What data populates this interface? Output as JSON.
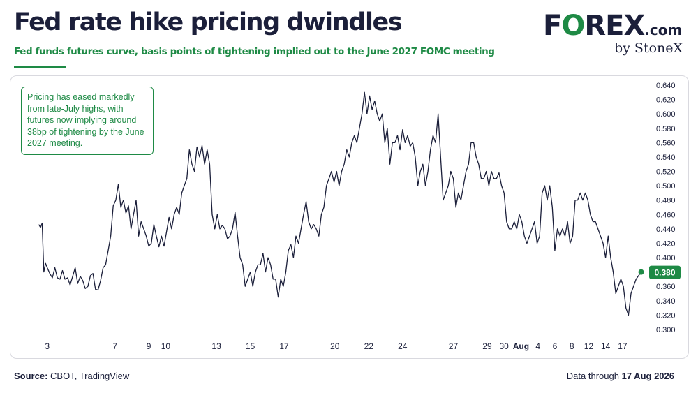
{
  "header": {
    "title": "Fed rate hike pricing dwindles",
    "subtitle": "Fed funds futures curve, basis points of tightening implied out to the June 2027 FOMC meeting"
  },
  "logo": {
    "f": "F",
    "o": "O",
    "rex": "REX",
    "dotcom": ".com",
    "byline": "by StoneX"
  },
  "annotation": {
    "text": "Pricing has eased markedly from late-July highs, with futures now implying around 38bp of tightening by the June 2027 meeting."
  },
  "footer": {
    "source_label": "Source:",
    "source_text": "CBOT, TradingView",
    "data_label": "Data through",
    "data_date": "17 Aug 2026"
  },
  "colors": {
    "line": "#1b1f3a",
    "accent": "#1e8a45",
    "title": "#1b1f3a"
  },
  "chart_data": {
    "type": "line",
    "title": "Fed rate hike pricing dwindles",
    "xlabel": "",
    "ylabel": "",
    "ylim": [
      0.29,
      0.645
    ],
    "y_ticks": [
      "0.640",
      "0.620",
      "0.600",
      "0.580",
      "0.560",
      "0.540",
      "0.520",
      "0.500",
      "0.480",
      "0.460",
      "0.440",
      "0.420",
      "0.400",
      "0.380",
      "0.360",
      "0.340",
      "0.320",
      "0.300"
    ],
    "x_ticks": [
      {
        "label": "3",
        "day": 3
      },
      {
        "label": "7",
        "day": 7
      },
      {
        "label": "9",
        "day": 9
      },
      {
        "label": "10",
        "day": 10
      },
      {
        "label": "13",
        "day": 13
      },
      {
        "label": "15",
        "day": 15
      },
      {
        "label": "17",
        "day": 17
      },
      {
        "label": "20",
        "day": 20
      },
      {
        "label": "22",
        "day": 22
      },
      {
        "label": "24",
        "day": 24
      },
      {
        "label": "27",
        "day": 27
      },
      {
        "label": "29",
        "day": 29
      },
      {
        "label": "30",
        "day": 30
      },
      {
        "label": "Aug",
        "day": 31
      },
      {
        "label": "4",
        "day": 32
      },
      {
        "label": "6",
        "day": 33
      },
      {
        "label": "8",
        "day": 34
      },
      {
        "label": "12",
        "day": 35
      },
      {
        "label": "14",
        "day": 36
      },
      {
        "label": "17",
        "day": 37
      }
    ],
    "x_range": [
      2.6,
      37.5
    ],
    "grid": false,
    "last_value_label": "0.380",
    "last_value": 0.38,
    "series": [
      {
        "name": "",
        "points": [
          [
            2.5,
            0.446
          ],
          [
            2.6,
            0.442
          ],
          [
            2.7,
            0.448
          ],
          [
            2.8,
            0.38
          ],
          [
            2.9,
            0.392
          ],
          [
            3.0,
            0.386
          ],
          [
            3.15,
            0.378
          ],
          [
            3.3,
            0.372
          ],
          [
            3.45,
            0.386
          ],
          [
            3.6,
            0.372
          ],
          [
            3.75,
            0.37
          ],
          [
            3.9,
            0.382
          ],
          [
            4.05,
            0.37
          ],
          [
            4.2,
            0.372
          ],
          [
            4.35,
            0.362
          ],
          [
            4.5,
            0.374
          ],
          [
            4.65,
            0.386
          ],
          [
            4.8,
            0.364
          ],
          [
            4.95,
            0.374
          ],
          [
            5.1,
            0.368
          ],
          [
            5.25,
            0.357
          ],
          [
            5.4,
            0.36
          ],
          [
            5.55,
            0.375
          ],
          [
            5.7,
            0.378
          ],
          [
            5.85,
            0.356
          ],
          [
            6.0,
            0.355
          ],
          [
            6.15,
            0.368
          ],
          [
            6.3,
            0.386
          ],
          [
            6.45,
            0.39
          ],
          [
            6.6,
            0.41
          ],
          [
            6.75,
            0.43
          ],
          [
            6.9,
            0.472
          ],
          [
            7.05,
            0.48
          ],
          [
            7.2,
            0.502
          ],
          [
            7.35,
            0.47
          ],
          [
            7.5,
            0.48
          ],
          [
            7.65,
            0.462
          ],
          [
            7.8,
            0.472
          ],
          [
            7.95,
            0.44
          ],
          [
            8.1,
            0.46
          ],
          [
            8.25,
            0.48
          ],
          [
            8.4,
            0.43
          ],
          [
            8.55,
            0.45
          ],
          [
            8.7,
            0.44
          ],
          [
            8.85,
            0.43
          ],
          [
            9.0,
            0.416
          ],
          [
            9.15,
            0.42
          ],
          [
            9.3,
            0.446
          ],
          [
            9.45,
            0.43
          ],
          [
            9.6,
            0.415
          ],
          [
            9.75,
            0.43
          ],
          [
            9.9,
            0.416
          ],
          [
            10.05,
            0.436
          ],
          [
            10.2,
            0.456
          ],
          [
            10.35,
            0.44
          ],
          [
            10.5,
            0.46
          ],
          [
            10.65,
            0.47
          ],
          [
            10.8,
            0.46
          ],
          [
            10.95,
            0.49
          ],
          [
            11.1,
            0.5
          ],
          [
            11.25,
            0.51
          ],
          [
            11.4,
            0.55
          ],
          [
            11.55,
            0.53
          ],
          [
            11.7,
            0.52
          ],
          [
            11.85,
            0.554
          ],
          [
            12.0,
            0.54
          ],
          [
            12.15,
            0.556
          ],
          [
            12.3,
            0.53
          ],
          [
            12.45,
            0.55
          ],
          [
            12.6,
            0.53
          ],
          [
            12.75,
            0.46
          ],
          [
            12.9,
            0.44
          ],
          [
            13.05,
            0.46
          ],
          [
            13.2,
            0.44
          ],
          [
            13.35,
            0.445
          ],
          [
            13.5,
            0.44
          ],
          [
            13.65,
            0.426
          ],
          [
            13.8,
            0.43
          ],
          [
            13.95,
            0.44
          ],
          [
            14.1,
            0.463
          ],
          [
            14.25,
            0.43
          ],
          [
            14.4,
            0.4
          ],
          [
            14.55,
            0.39
          ],
          [
            14.7,
            0.36
          ],
          [
            14.85,
            0.37
          ],
          [
            15.0,
            0.38
          ],
          [
            15.15,
            0.36
          ],
          [
            15.3,
            0.38
          ],
          [
            15.45,
            0.39
          ],
          [
            15.6,
            0.39
          ],
          [
            15.75,
            0.406
          ],
          [
            15.9,
            0.38
          ],
          [
            16.05,
            0.4
          ],
          [
            16.2,
            0.39
          ],
          [
            16.35,
            0.37
          ],
          [
            16.5,
            0.37
          ],
          [
            16.65,
            0.345
          ],
          [
            16.8,
            0.37
          ],
          [
            16.95,
            0.36
          ],
          [
            17.1,
            0.38
          ],
          [
            17.25,
            0.41
          ],
          [
            17.4,
            0.418
          ],
          [
            17.55,
            0.4
          ],
          [
            17.7,
            0.43
          ],
          [
            17.85,
            0.42
          ],
          [
            18.0,
            0.44
          ],
          [
            18.15,
            0.46
          ],
          [
            18.3,
            0.478
          ],
          [
            18.45,
            0.45
          ],
          [
            18.6,
            0.44
          ],
          [
            18.75,
            0.446
          ],
          [
            18.9,
            0.44
          ],
          [
            19.05,
            0.43
          ],
          [
            19.2,
            0.46
          ],
          [
            19.35,
            0.47
          ],
          [
            19.5,
            0.5
          ],
          [
            19.65,
            0.51
          ],
          [
            19.8,
            0.52
          ],
          [
            19.95,
            0.505
          ],
          [
            20.1,
            0.52
          ],
          [
            20.25,
            0.5
          ],
          [
            20.4,
            0.52
          ],
          [
            20.55,
            0.53
          ],
          [
            20.7,
            0.55
          ],
          [
            20.85,
            0.54
          ],
          [
            21.0,
            0.56
          ],
          [
            21.15,
            0.57
          ],
          [
            21.3,
            0.56
          ],
          [
            21.45,
            0.58
          ],
          [
            21.6,
            0.6
          ],
          [
            21.75,
            0.63
          ],
          [
            21.9,
            0.6
          ],
          [
            22.05,
            0.625
          ],
          [
            22.2,
            0.606
          ],
          [
            22.35,
            0.618
          ],
          [
            22.5,
            0.6
          ],
          [
            22.65,
            0.59
          ],
          [
            22.8,
            0.6
          ],
          [
            22.95,
            0.56
          ],
          [
            23.1,
            0.58
          ],
          [
            23.25,
            0.53
          ],
          [
            23.4,
            0.56
          ],
          [
            23.55,
            0.56
          ],
          [
            23.7,
            0.57
          ],
          [
            23.85,
            0.55
          ],
          [
            24.0,
            0.578
          ],
          [
            24.15,
            0.56
          ],
          [
            24.3,
            0.57
          ],
          [
            24.45,
            0.555
          ],
          [
            24.6,
            0.56
          ],
          [
            24.75,
            0.54
          ],
          [
            24.9,
            0.5
          ],
          [
            25.05,
            0.52
          ],
          [
            25.2,
            0.53
          ],
          [
            25.35,
            0.5
          ],
          [
            25.5,
            0.52
          ],
          [
            25.65,
            0.55
          ],
          [
            25.8,
            0.57
          ],
          [
            25.95,
            0.56
          ],
          [
            26.1,
            0.6
          ],
          [
            26.25,
            0.54
          ],
          [
            26.4,
            0.48
          ],
          [
            26.55,
            0.49
          ],
          [
            26.7,
            0.5
          ],
          [
            26.85,
            0.52
          ],
          [
            27.0,
            0.51
          ],
          [
            27.15,
            0.47
          ],
          [
            27.3,
            0.49
          ],
          [
            27.45,
            0.48
          ],
          [
            27.6,
            0.5
          ],
          [
            27.75,
            0.52
          ],
          [
            27.9,
            0.53
          ],
          [
            28.05,
            0.56
          ],
          [
            28.2,
            0.56
          ],
          [
            28.35,
            0.54
          ],
          [
            28.5,
            0.53
          ],
          [
            28.65,
            0.51
          ],
          [
            28.8,
            0.51
          ],
          [
            28.95,
            0.52
          ],
          [
            29.1,
            0.5
          ],
          [
            29.25,
            0.52
          ],
          [
            29.4,
            0.51
          ],
          [
            29.55,
            0.51
          ],
          [
            29.7,
            0.518
          ],
          [
            29.85,
            0.5
          ],
          [
            30.0,
            0.49
          ],
          [
            30.15,
            0.45
          ],
          [
            30.3,
            0.44
          ],
          [
            30.45,
            0.44
          ],
          [
            30.6,
            0.45
          ],
          [
            30.75,
            0.44
          ],
          [
            30.9,
            0.46
          ],
          [
            31.05,
            0.45
          ],
          [
            31.2,
            0.43
          ],
          [
            31.35,
            0.42
          ],
          [
            31.5,
            0.43
          ],
          [
            31.65,
            0.44
          ],
          [
            31.8,
            0.45
          ],
          [
            31.95,
            0.42
          ],
          [
            32.1,
            0.43
          ],
          [
            32.25,
            0.49
          ],
          [
            32.4,
            0.5
          ],
          [
            32.55,
            0.48
          ],
          [
            32.7,
            0.5
          ],
          [
            32.85,
            0.47
          ],
          [
            33.0,
            0.41
          ],
          [
            33.15,
            0.44
          ],
          [
            33.3,
            0.43
          ],
          [
            33.45,
            0.44
          ],
          [
            33.6,
            0.43
          ],
          [
            33.75,
            0.45
          ],
          [
            33.9,
            0.42
          ],
          [
            34.05,
            0.43
          ],
          [
            34.2,
            0.48
          ],
          [
            34.35,
            0.48
          ],
          [
            34.5,
            0.49
          ],
          [
            34.65,
            0.48
          ],
          [
            34.8,
            0.49
          ],
          [
            34.95,
            0.48
          ],
          [
            35.1,
            0.46
          ],
          [
            35.25,
            0.45
          ],
          [
            35.4,
            0.45
          ],
          [
            35.55,
            0.44
          ],
          [
            35.7,
            0.43
          ],
          [
            35.85,
            0.42
          ],
          [
            36.0,
            0.4
          ],
          [
            36.15,
            0.43
          ],
          [
            36.3,
            0.4
          ],
          [
            36.45,
            0.38
          ],
          [
            36.6,
            0.35
          ],
          [
            36.75,
            0.36
          ],
          [
            36.9,
            0.37
          ],
          [
            37.05,
            0.36
          ],
          [
            37.2,
            0.33
          ],
          [
            37.35,
            0.32
          ],
          [
            37.5,
            0.35
          ],
          [
            37.65,
            0.36
          ],
          [
            37.8,
            0.37
          ],
          [
            37.95,
            0.375
          ],
          [
            38.1,
            0.38
          ]
        ]
      }
    ]
  }
}
